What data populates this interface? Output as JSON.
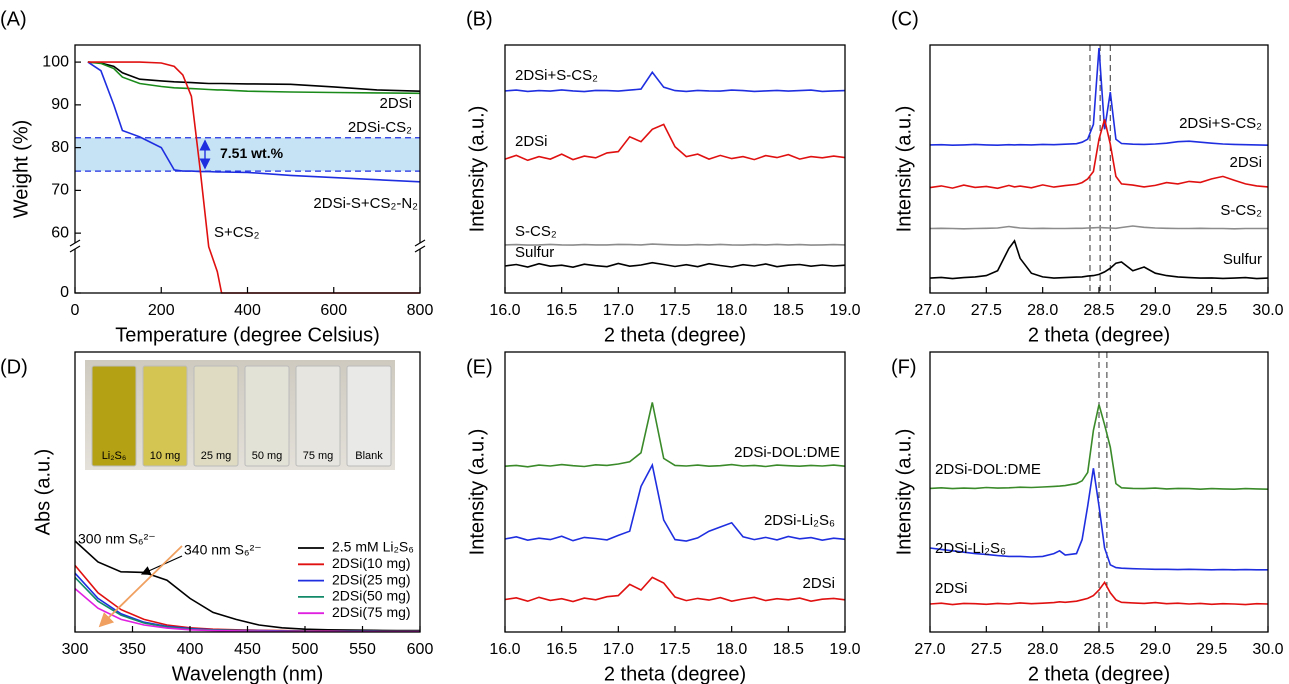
{
  "chart_data": [
    {
      "type": "line",
      "panel": "(A)",
      "xlabel": "Temperature (degree Celsius)",
      "ylabel": "Weight (%)",
      "xlim": [
        0,
        800
      ],
      "ylim": [
        0,
        104
      ],
      "ybreak": [
        10,
        58
      ],
      "xticks": [
        0,
        200,
        400,
        600,
        800
      ],
      "yticks": [
        0,
        60,
        70,
        80,
        90,
        100
      ],
      "x": [
        30,
        60,
        90,
        110,
        150,
        200,
        230,
        250,
        270,
        290,
        310,
        330,
        340,
        400,
        500,
        600,
        700,
        800
      ],
      "series": [
        {
          "name": "2DSi",
          "color": "#000000",
          "values": [
            100,
            99.8,
            99,
            97.5,
            96,
            95.6,
            95.4,
            95.3,
            95.2,
            95.1,
            95,
            95,
            95,
            94.9,
            94.8,
            94.2,
            93.5,
            93.2
          ]
        },
        {
          "name": "2DSi-CS₂",
          "color": "#1a8a1a",
          "values": [
            100,
            99.7,
            98.5,
            96.5,
            95,
            94.3,
            94,
            93.9,
            93.8,
            93.7,
            93.6,
            93.5,
            93.5,
            93.2,
            93,
            92.9,
            92.8,
            92.7
          ]
        },
        {
          "name": "2DSi-S+CS₂-N₂",
          "color": "#1f2fe0",
          "values": [
            100,
            98,
            90,
            84,
            82.5,
            80,
            74.8,
            74.5,
            74.5,
            74.4,
            74.4,
            74.3,
            74.3,
            74.2,
            73.5,
            73,
            72.5,
            72
          ]
        },
        {
          "name": "S+CS₂",
          "color": "#e01010",
          "values": [
            100,
            100,
            100,
            100,
            100,
            99.8,
            99,
            97,
            92,
            75,
            30,
            5,
            0,
            0,
            0,
            0,
            0,
            0
          ]
        }
      ],
      "band": [
        74.5,
        82.3
      ],
      "annotation": "7.51 wt.%"
    },
    {
      "type": "line",
      "panel": "(B)",
      "xlabel": "2 theta (degree)",
      "ylabel": "Intensity (a.u.)",
      "xlim": [
        16,
        19
      ],
      "ylim": [
        0,
        100
      ],
      "xticks": [
        {
          "value": 16,
          "label": "16.0"
        },
        16.5,
        {
          "value": 17,
          "label": "17.0"
        },
        17.5,
        {
          "value": 18,
          "label": "18.0"
        },
        18.5,
        {
          "value": 19,
          "label": "19.0"
        }
      ],
      "x": [
        16,
        16.1,
        16.2,
        16.3,
        16.4,
        16.5,
        16.6,
        16.7,
        16.8,
        16.9,
        17,
        17.1,
        17.2,
        17.3,
        17.4,
        17.5,
        17.6,
        17.7,
        17.8,
        17.9,
        18,
        18.1,
        18.2,
        18.3,
        18.4,
        18.5,
        18.6,
        18.7,
        18.8,
        18.9,
        19
      ],
      "series": [
        {
          "name": "2DSi+S-CS₂",
          "color": "#1f2fe0",
          "values": [
            81.5,
            81.8,
            81.3,
            81.6,
            81.4,
            81.9,
            81.5,
            81.2,
            81.7,
            81.6,
            81.4,
            81.8,
            82.2,
            89,
            83,
            81.6,
            81.3,
            81.7,
            81.5,
            81.4,
            81.8,
            81.6,
            81.3,
            81.5,
            81.7,
            81.4,
            81.6,
            81.8,
            81.3,
            81.5,
            81.6
          ]
        },
        {
          "name": "2DSi",
          "color": "#e01010",
          "values": [
            54,
            55.5,
            53.5,
            55,
            54,
            56,
            53.8,
            55.2,
            54.5,
            56.5,
            57,
            63,
            61,
            66,
            68,
            59,
            55,
            56,
            54,
            55.5,
            54.2,
            55,
            53.8,
            55.4,
            54.6,
            55.8,
            54,
            55,
            54.5,
            55.2,
            54.6
          ]
        },
        {
          "name": "S-CS₂",
          "color": "#8c8c8c",
          "values": [
            19.4,
            19.5,
            19.3,
            19.4,
            19.6,
            19.4,
            19.3,
            19.5,
            19.4,
            19.4,
            19.6,
            19.5,
            19.4,
            19.7,
            19.5,
            19.4,
            19.3,
            19.5,
            19.4,
            19.6,
            19.4,
            19.3,
            19.5,
            19.4,
            19.6,
            19.4,
            19.5,
            19.3,
            19.4,
            19.5,
            19.4
          ]
        },
        {
          "name": "Sulfur",
          "color": "#000000",
          "values": [
            10.9,
            11.5,
            10.5,
            11.8,
            10.8,
            11.2,
            10.4,
            11.6,
            11,
            10.6,
            11.9,
            10.8,
            11.3,
            12.2,
            11.5,
            10.7,
            11.4,
            10.6,
            11.8,
            11.1,
            10.5,
            11.4,
            10.9,
            11.7,
            10.6,
            11.2,
            11.5,
            10.8,
            11.3,
            10.9,
            11.2
          ]
        }
      ]
    },
    {
      "type": "line",
      "panel": "(C)",
      "xlabel": "2 theta (degree)",
      "ylabel": "Intensity (a.u.)",
      "xlim": [
        27,
        30
      ],
      "ylim": [
        0,
        100
      ],
      "xticks": [
        {
          "value": 27,
          "label": "27.0"
        },
        27.5,
        {
          "value": 28,
          "label": "28.0"
        },
        28.5,
        {
          "value": 29,
          "label": "29.0"
        },
        29.5,
        {
          "value": 30,
          "label": "30.0"
        }
      ],
      "x": [
        27,
        27.1,
        27.2,
        27.3,
        27.4,
        27.5,
        27.6,
        27.7,
        27.75,
        27.8,
        27.9,
        28,
        28.1,
        28.2,
        28.3,
        28.35,
        28.4,
        28.45,
        28.5,
        28.55,
        28.6,
        28.65,
        28.7,
        28.8,
        28.9,
        29,
        29.1,
        29.2,
        29.3,
        29.4,
        29.5,
        29.6,
        29.7,
        29.8,
        29.9,
        30
      ],
      "series": [
        {
          "name": "2DSi+S-CS₂",
          "color": "#1f2fe0",
          "values": [
            59.7,
            59.8,
            59.6,
            59.7,
            59.9,
            59.7,
            59.6,
            59.8,
            59.7,
            59.8,
            59.7,
            59.9,
            59.8,
            60,
            60.2,
            60.8,
            62,
            68,
            98.8,
            66,
            81,
            62,
            60.3,
            60,
            59.9,
            60.1,
            60.4,
            61,
            61.2,
            60.8,
            60.4,
            60.1,
            59.9,
            59.8,
            59.7,
            59.6
          ]
        },
        {
          "name": "2DSi",
          "color": "#e01010",
          "values": [
            42.5,
            43.2,
            42.3,
            43.5,
            42.6,
            43,
            42.2,
            43.4,
            42.8,
            43.1,
            42.4,
            43.6,
            42.7,
            43.3,
            43.8,
            44.5,
            46,
            49,
            62,
            70,
            60,
            47,
            44,
            43.5,
            42.8,
            43.4,
            44.5,
            44,
            45,
            44.6,
            46,
            47,
            45.5,
            44,
            43.2,
            42.8
          ]
        },
        {
          "name": "S-CS₂",
          "color": "#8c8c8c",
          "values": [
            26,
            26.1,
            26,
            25.9,
            26,
            26.1,
            26.2,
            26.8,
            26.5,
            26.2,
            26,
            26.1,
            26,
            26,
            26.1,
            26.1,
            26.2,
            26.3,
            26.4,
            26.3,
            26.2,
            26.1,
            26.4,
            27,
            26.5,
            26.2,
            26.1,
            26,
            26,
            26.1,
            26,
            26,
            25.9,
            26,
            26,
            26
          ]
        },
        {
          "name": "Sulfur",
          "color": "#000000",
          "values": [
            6,
            6.3,
            5.8,
            6.2,
            6.5,
            7,
            9,
            18,
            21,
            14,
            8,
            6.5,
            6,
            6.2,
            6.4,
            6.5,
            6.8,
            7,
            7.5,
            8.5,
            10,
            12,
            12.5,
            9,
            10.5,
            8,
            7,
            6.5,
            6.2,
            6,
            6.1,
            5.9,
            6,
            6.2,
            5.8,
            6
          ]
        }
      ],
      "vlines": [
        28.42,
        28.51,
        28.6
      ]
    },
    {
      "type": "line",
      "panel": "(D)",
      "xlabel": "Wavelength (nm)",
      "ylabel": "Abs (a.u.)",
      "xlim": [
        300,
        600
      ],
      "ylim": [
        0,
        100
      ],
      "xticks": [
        300,
        350,
        400,
        450,
        500,
        550,
        600
      ],
      "x": [
        300,
        320,
        340,
        360,
        380,
        400,
        420,
        440,
        460,
        480,
        500,
        520,
        540,
        560,
        580,
        600
      ],
      "series": [
        {
          "name": "2.5 mM Li₂S₆",
          "color": "#000000",
          "values": [
            32.5,
            25,
            21.5,
            21.3,
            18.5,
            12,
            7,
            4.5,
            2.5,
            1.5,
            1,
            0.8,
            0.7,
            0.6,
            0.5,
            0.5
          ]
        },
        {
          "name": "2DSi(10 mg)",
          "color": "#e01010",
          "values": [
            23.8,
            14,
            8,
            4.5,
            2.5,
            1.5,
            1,
            0.8,
            0.6,
            0.5,
            0.4,
            0.4,
            0.3,
            0.3,
            0.3,
            0.3
          ]
        },
        {
          "name": "2DSi(25 mg)",
          "color": "#1f2fe0",
          "values": [
            21,
            12,
            6.5,
            3.5,
            2,
            1.2,
            0.8,
            0.6,
            0.5,
            0.4,
            0.3,
            0.3,
            0.3,
            0.3,
            0.2,
            0.2
          ]
        },
        {
          "name": "2DSi(50 mg)",
          "color": "#128a6a",
          "values": [
            19.5,
            11,
            6,
            3.2,
            1.8,
            1,
            0.7,
            0.5,
            0.4,
            0.3,
            0.3,
            0.2,
            0.2,
            0.2,
            0.2,
            0.2
          ]
        },
        {
          "name": "2DSi(75 mg)",
          "color": "#e020e0",
          "values": [
            15.5,
            8.5,
            4.5,
            2.5,
            1.4,
            0.8,
            0.5,
            0.4,
            0.3,
            0.2,
            0.2,
            0.2,
            0.1,
            0.1,
            0.1,
            0.1
          ]
        }
      ],
      "legend": "right",
      "annotations": [
        "300 nm S₆²⁻",
        "340 nm S₆²⁻"
      ],
      "inset": {
        "labels": [
          "Li₂S₆",
          "10 mg",
          "25 mg",
          "50 mg",
          "75 mg",
          "Blank"
        ]
      }
    },
    {
      "type": "line",
      "panel": "(E)",
      "xlabel": "2 theta (degree)",
      "ylabel": "Intensity (a.u.)",
      "xlim": [
        16,
        19
      ],
      "ylim": [
        0,
        100
      ],
      "xticks": [
        {
          "value": 16,
          "label": "16.0"
        },
        16.5,
        {
          "value": 17,
          "label": "17.0"
        },
        17.5,
        {
          "value": 18,
          "label": "18.0"
        },
        18.5,
        {
          "value": 19,
          "label": "19.0"
        }
      ],
      "x": [
        16,
        16.1,
        16.2,
        16.3,
        16.4,
        16.5,
        16.6,
        16.7,
        16.8,
        16.9,
        17,
        17.1,
        17.2,
        17.3,
        17.4,
        17.5,
        17.6,
        17.7,
        17.8,
        17.9,
        18,
        18.1,
        18.2,
        18.3,
        18.4,
        18.5,
        18.6,
        18.7,
        18.8,
        18.9,
        19
      ],
      "series": [
        {
          "name": "2DSi-DOL:DME",
          "color": "#3a8a2a",
          "values": [
            59.2,
            59.5,
            59,
            59.6,
            59.3,
            59.8,
            59.4,
            59.1,
            59.7,
            59.5,
            60,
            60.8,
            64,
            82,
            62,
            59.5,
            59.3,
            59.6,
            59.2,
            59.4,
            59.8,
            59.3,
            59.5,
            59.1,
            59.6,
            59.4,
            59.2,
            59.5,
            59.3,
            59.6,
            59.2
          ]
        },
        {
          "name": "2DSi-Li₂S₆",
          "color": "#1f2fe0",
          "values": [
            33.2,
            34,
            32.8,
            33.5,
            33,
            34.2,
            32.6,
            33.8,
            33.4,
            32.9,
            34.5,
            36,
            52,
            59.6,
            40,
            33,
            32.5,
            33.6,
            36,
            37.5,
            39,
            34,
            33,
            33.8,
            32.9,
            34.1,
            33.3,
            33.7,
            32.8,
            33.5,
            33.1
          ]
        },
        {
          "name": "2DSi",
          "color": "#e01010",
          "values": [
            11.6,
            12.2,
            11,
            12.4,
            11.3,
            11.9,
            10.9,
            12.1,
            11.5,
            12.6,
            13,
            17,
            15,
            19.5,
            17.5,
            12.5,
            11.2,
            12,
            11.4,
            12.3,
            11,
            11.8,
            12.4,
            11.2,
            11.9,
            11.5,
            12.1,
            11,
            11.7,
            12,
            11.5
          ]
        }
      ]
    },
    {
      "type": "line",
      "panel": "(F)",
      "xlabel": "2 theta (degree)",
      "ylabel": "Intensity (a.u.)",
      "xlim": [
        27,
        30
      ],
      "ylim": [
        0,
        100
      ],
      "xticks": [
        {
          "value": 27,
          "label": "27.0"
        },
        27.5,
        {
          "value": 28,
          "label": "28.0"
        },
        28.5,
        {
          "value": 29,
          "label": "29.0"
        },
        29.5,
        {
          "value": 30,
          "label": "30.0"
        }
      ],
      "x": [
        27,
        27.1,
        27.2,
        27.3,
        27.4,
        27.5,
        27.6,
        27.7,
        27.8,
        27.9,
        28,
        28.1,
        28.15,
        28.2,
        28.3,
        28.35,
        28.4,
        28.45,
        28.5,
        28.55,
        28.6,
        28.65,
        28.7,
        28.8,
        28.9,
        29,
        29.1,
        29.2,
        29.3,
        29.4,
        29.5,
        29.6,
        29.7,
        29.8,
        29.9,
        30
      ],
      "series": [
        {
          "name": "2DSi-DOL:DME",
          "color": "#3a8a2a",
          "values": [
            51.3,
            51.5,
            51.2,
            51.4,
            51.3,
            51.6,
            51.4,
            51.5,
            51.7,
            51.6,
            51.8,
            52,
            52.1,
            52.3,
            53,
            54,
            57,
            72,
            81.2,
            74,
            66,
            53,
            51.5,
            51.3,
            51.2,
            51.4,
            51.1,
            51.3,
            51.2,
            51,
            51.2,
            51.1,
            51,
            51.2,
            51.1,
            51
          ]
        },
        {
          "name": "2DSi-Li₂S₆",
          "color": "#1f2fe0",
          "values": [
            30,
            29.5,
            29,
            28.5,
            28,
            27.7,
            27.3,
            27,
            27,
            26.8,
            27,
            28,
            29,
            27.5,
            28,
            33,
            45,
            58.5,
            45,
            30,
            24,
            23,
            22.8,
            22.6,
            22.5,
            22.4,
            22.4,
            22.3,
            22.4,
            22.3,
            22.2,
            22.3,
            22.2,
            22.3,
            22.2,
            22.2
          ]
        },
        {
          "name": "2DSi",
          "color": "#e01010",
          "values": [
            10,
            10.3,
            9.8,
            10.2,
            10.1,
            9.9,
            10.2,
            10,
            10.4,
            10.1,
            10.3,
            10.5,
            10.8,
            10.6,
            11,
            11.5,
            12,
            13,
            15,
            17.7,
            14,
            11.5,
            10.6,
            10.4,
            10.2,
            10.5,
            10.1,
            10.3,
            10,
            10.2,
            9.9,
            10.1,
            10,
            9.8,
            10.1,
            10
          ]
        }
      ],
      "vlines": [
        28.5,
        28.57
      ]
    }
  ]
}
